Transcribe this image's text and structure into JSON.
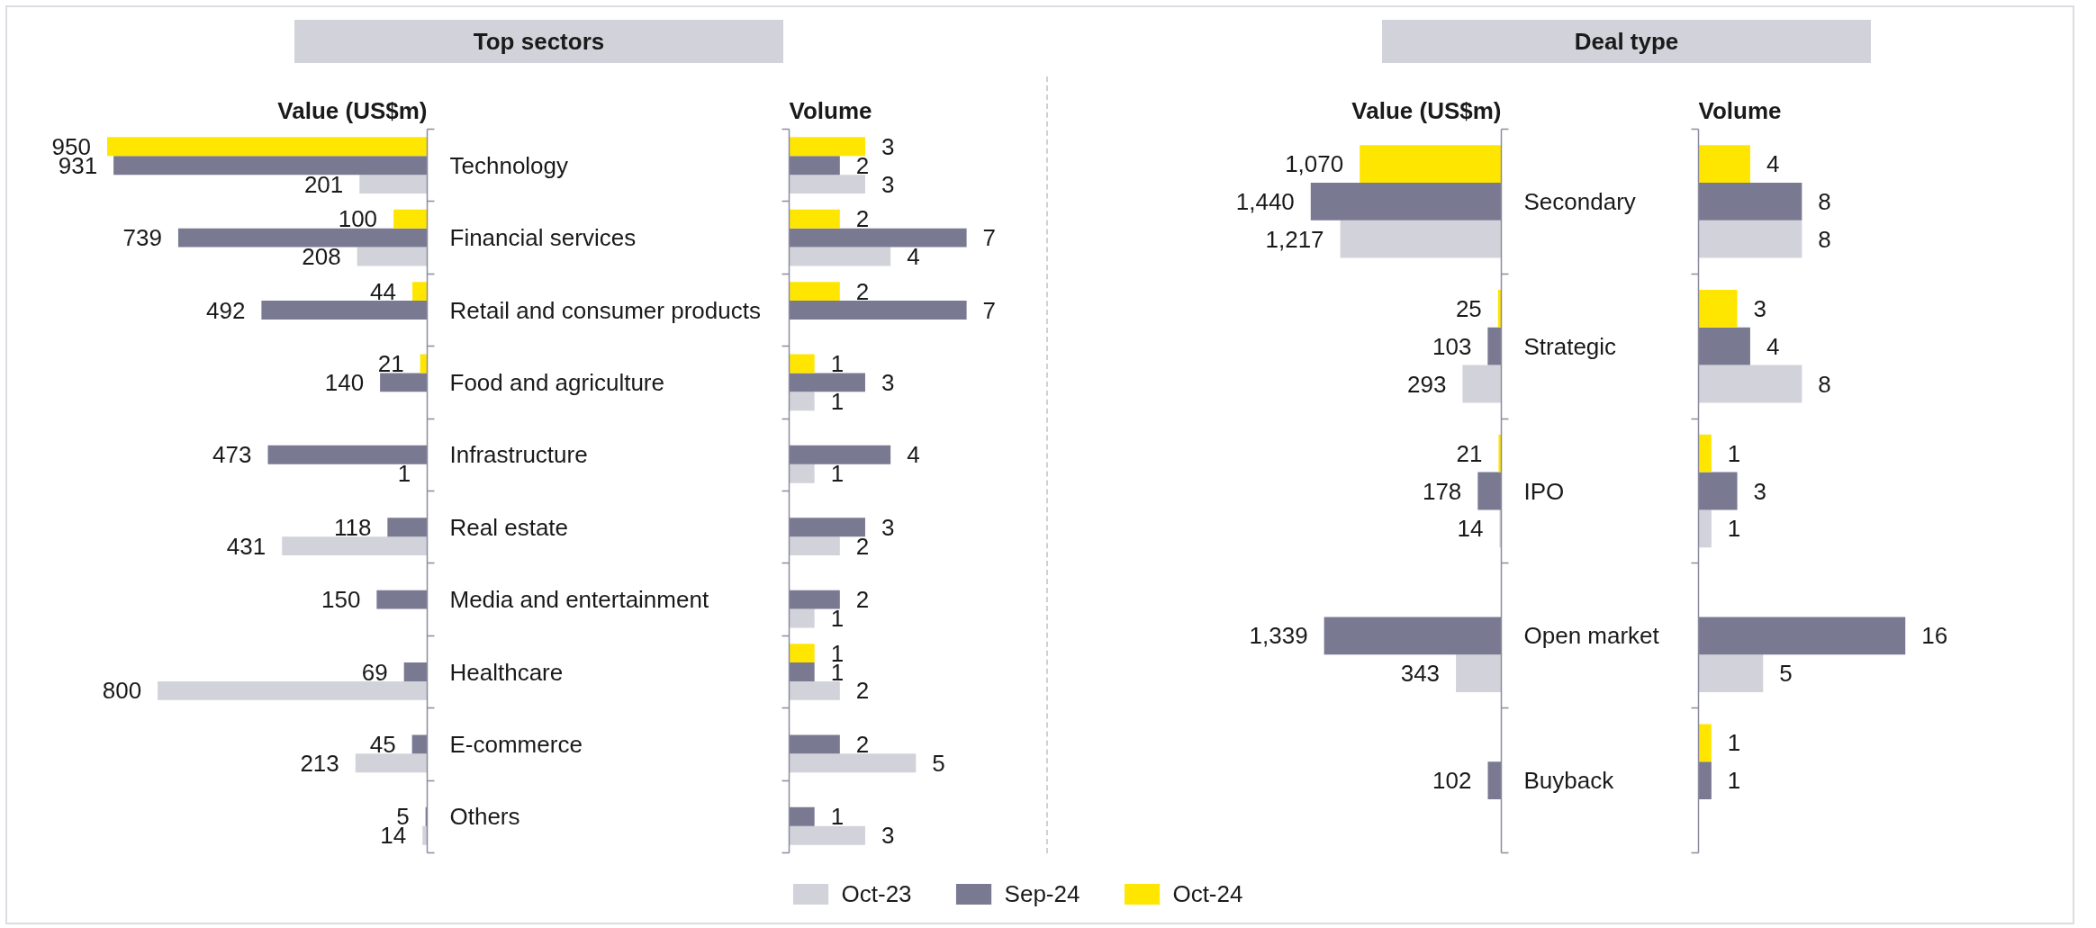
{
  "chart_data": [
    {
      "type": "bar",
      "orientation": "horizontal",
      "title": "Top sectors",
      "subtitle": "Value (US$m)",
      "categories": [
        "Technology",
        "Financial services",
        "Retail and consumer products",
        "Food and agriculture",
        "Infrastructure",
        "Real estate",
        "Media and entertainment",
        "Healthcare",
        "E-commerce",
        "Others"
      ],
      "tick_labels": "y",
      "data_labels": true,
      "legend": "bottom",
      "series": [
        {
          "name": "Oct-23",
          "color": "#d2d2da",
          "values": [
            201,
            208,
            null,
            null,
            1,
            431,
            null,
            800,
            213,
            14
          ]
        },
        {
          "name": "Sep-24",
          "color": "#797991",
          "values": [
            931,
            739,
            492,
            140,
            473,
            118,
            150,
            69,
            45,
            5
          ]
        },
        {
          "name": "Oct-24",
          "color": "#ffe600",
          "values": [
            950,
            100,
            44,
            21,
            null,
            null,
            null,
            null,
            null,
            null
          ]
        }
      ]
    },
    {
      "type": "bar",
      "orientation": "horizontal",
      "subtitle": "Volume",
      "categories": [
        null,
        null,
        null,
        null,
        null,
        null,
        null,
        null,
        null,
        null
      ],
      "tick_labels": false,
      "data_labels": true,
      "series": [
        {
          "color": "#d2d2da",
          "values": [
            3,
            4,
            null,
            1,
            1,
            2,
            1,
            2,
            5,
            3
          ]
        },
        {
          "color": "#797991",
          "values": [
            2,
            7,
            7,
            3,
            4,
            3,
            2,
            1,
            2,
            1
          ]
        },
        {
          "color": "#ffe600",
          "values": [
            3,
            2,
            2,
            1,
            null,
            null,
            null,
            1,
            null,
            null
          ]
        }
      ]
    },
    {
      "type": "bar",
      "orientation": "horizontal",
      "title": "Deal type",
      "subtitle": "Value (US$m)",
      "categories": [
        "Secondary",
        "Strategic",
        "IPO",
        "Open market",
        "Buyback"
      ],
      "tick_labels": "y",
      "series": [
        {
          "color": "#d2d2da",
          "values": [
            1217,
            293,
            14,
            343,
            null
          ],
          "value_labels": [
            "1,217",
            "293",
            "14",
            "343",
            null
          ]
        },
        {
          "color": "#797991",
          "values": [
            1440,
            103,
            178,
            1339,
            102
          ],
          "value_labels": [
            "1,440",
            "103",
            "178",
            "1,339",
            "102"
          ]
        },
        {
          "color": "#ffe600",
          "values": [
            1070,
            25,
            21,
            null,
            null
          ],
          "value_labels": [
            "1,070",
            "25",
            "21",
            null,
            null
          ]
        }
      ]
    },
    {
      "type": "bar",
      "orientation": "horizontal",
      "subtitle": "Volume",
      "categories": [
        null,
        null,
        null,
        null,
        null
      ],
      "tick_labels": false,
      "data_labels": true,
      "series": [
        {
          "color": "#d2d2da",
          "values": [
            8,
            8,
            1,
            5,
            null
          ]
        },
        {
          "color": "#797991",
          "values": [
            8,
            4,
            3,
            16,
            1
          ]
        },
        {
          "color": "#ffe600",
          "values": [
            4,
            3,
            1,
            null,
            1
          ]
        }
      ]
    }
  ]
}
